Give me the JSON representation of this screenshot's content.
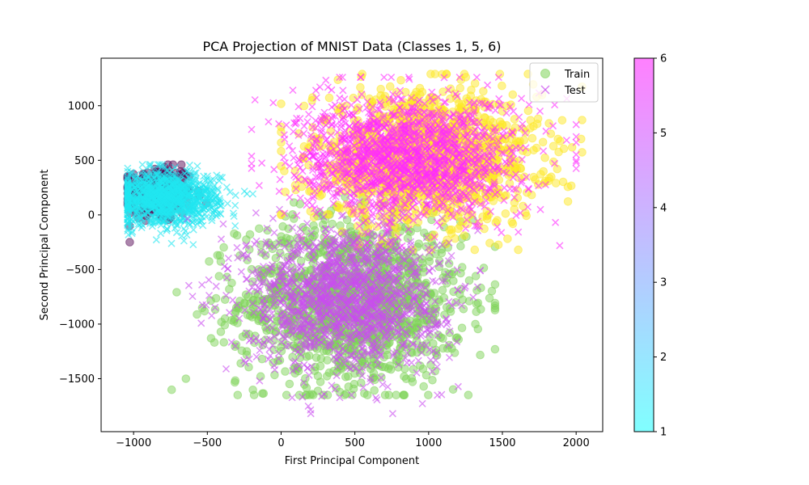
{
  "chart_data": {
    "type": "scatter",
    "title": "PCA Projection of MNIST Data (Classes 1, 5, 6)",
    "xlabel": "First Principal Component",
    "ylabel": "Second Principal Component",
    "xlim": [
      -1220,
      2180
    ],
    "ylim": [
      -1985,
      1435
    ],
    "xticks": [
      -1000,
      -500,
      0,
      500,
      1000,
      1500,
      2000
    ],
    "yticks": [
      -1500,
      -1000,
      -500,
      0,
      500,
      1000
    ],
    "grid": false,
    "legend_position": "upper-right",
    "legend": [
      {
        "label": "Train",
        "marker": "circle",
        "color": "#7fd35a"
      },
      {
        "label": "Test",
        "marker": "x",
        "color": "#c94cf0"
      }
    ],
    "colorbar": {
      "range": [
        1,
        6
      ],
      "ticks": [
        1,
        2,
        3,
        4,
        5,
        6
      ],
      "colormap": "cool"
    },
    "series": [
      {
        "split": "Train",
        "marker": "circle",
        "clusters": [
          {
            "color": "#5a0e5a",
            "n": 260,
            "cx": -840,
            "cy": 200,
            "sx": 120,
            "sy": 130,
            "xmin": -1040,
            "xmax": -250,
            "ymin": -250,
            "ymax": 460
          },
          {
            "color": "#7fd35a",
            "n": 1400,
            "cx": 480,
            "cy": -800,
            "sx": 380,
            "sy": 380,
            "xmin": -950,
            "xmax": 1450,
            "ymin": -1650,
            "ymax": 800
          },
          {
            "color": "#fde725",
            "n": 1400,
            "cx": 980,
            "cy": 520,
            "sx": 380,
            "sy": 300,
            "xmin": 0,
            "xmax": 2040,
            "ymin": -320,
            "ymax": 1290
          }
        ]
      },
      {
        "split": "Test",
        "marker": "x",
        "clusters": [
          {
            "color": "#22e6f0",
            "n": 1100,
            "cx": -780,
            "cy": 150,
            "sx": 180,
            "sy": 120,
            "xmin": -1040,
            "xmax": 0,
            "ymin": -400,
            "ymax": 460
          },
          {
            "color": "#c94cf0",
            "n": 1400,
            "cx": 430,
            "cy": -750,
            "sx": 330,
            "sy": 330,
            "xmin": -800,
            "xmax": 1350,
            "ymin": -1820,
            "ymax": 200
          },
          {
            "color": "#ff29ff",
            "n": 1500,
            "cx": 860,
            "cy": 520,
            "sx": 380,
            "sy": 280,
            "xmin": -200,
            "xmax": 2000,
            "ymin": -300,
            "ymax": 1260
          }
        ]
      }
    ]
  }
}
